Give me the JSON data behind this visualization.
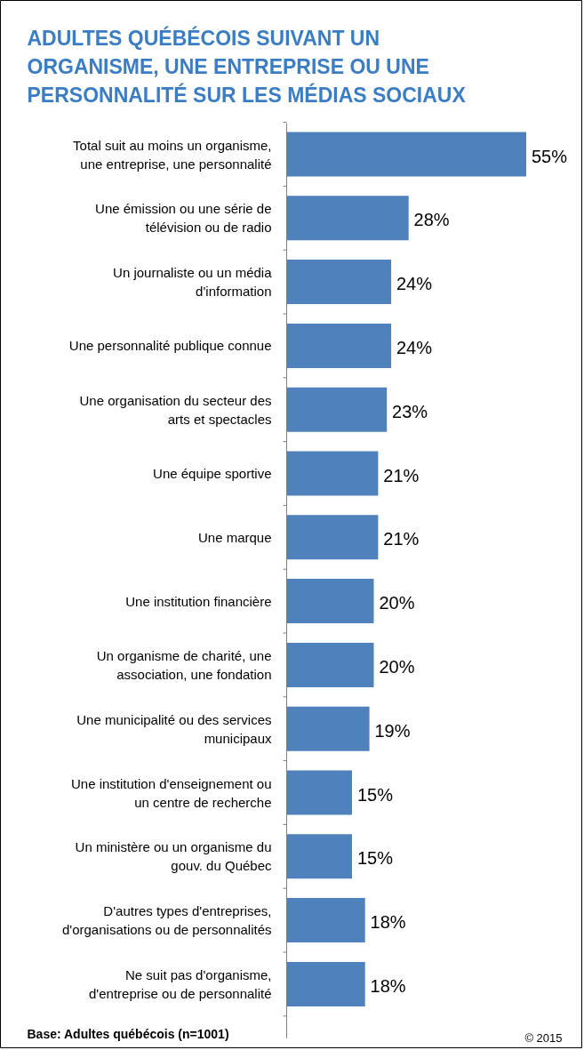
{
  "chart_data": {
    "type": "bar",
    "orientation": "horizontal",
    "title": "ADULTES QUÉBÉCOIS SUIVANT UN ORGANISME, UNE ENTREPRISE OU UNE PERSONNALITÉ SUR LES MÉDIAS SOCIAUX",
    "categories": [
      "Total suit au moins un organisme, une entreprise, une personnalité",
      "Une émission ou une série de télévision ou de radio",
      "Un journaliste ou un média d'information",
      "Une personnalité publique connue",
      "Une organisation du secteur des arts et spectacles",
      "Une équipe sportive",
      "Une marque",
      "Une institution financière",
      "Un organisme de charité, une association, une fondation",
      "Une municipalité ou des services municipaux",
      "Une institution d'enseignement ou un centre de recherche",
      "Un ministère ou un organisme du gouv. du Québec",
      "D'autres types d'entreprises, d'organisations ou de personnalités",
      "Ne suit pas d'organisme, d'entreprise ou de personnalité"
    ],
    "values": [
      55,
      28,
      24,
      24,
      23,
      21,
      21,
      20,
      20,
      19,
      15,
      15,
      18,
      18
    ],
    "value_labels": [
      "55%",
      "28%",
      "24%",
      "24%",
      "23%",
      "21%",
      "21%",
      "20%",
      "20%",
      "19%",
      "15%",
      "15%",
      "18%",
      "18%"
    ],
    "color": "#4f81bd",
    "annotations": [
      "Base: Adultes québécois (n=1001)",
      "© 2015"
    ]
  }
}
